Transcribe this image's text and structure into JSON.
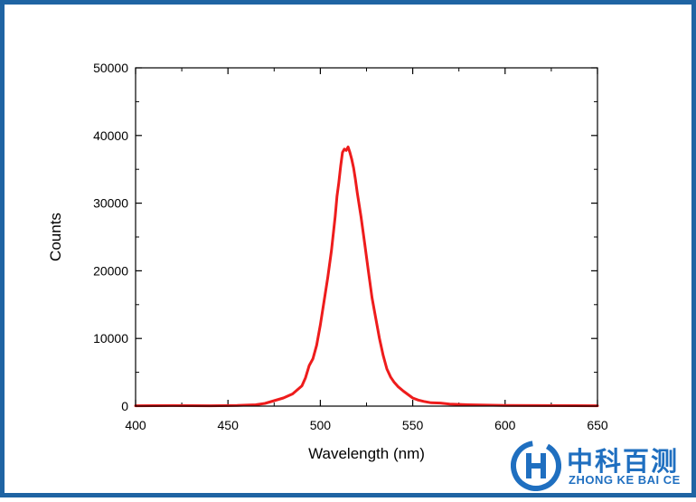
{
  "chart_data": {
    "type": "line",
    "xlabel": "Wavelength (nm)",
    "ylabel": "Counts",
    "xlim": [
      400,
      650
    ],
    "ylim": [
      0,
      50000
    ],
    "x_ticks": [
      400,
      450,
      500,
      550,
      600,
      650
    ],
    "y_ticks": [
      0,
      10000,
      20000,
      30000,
      40000,
      50000
    ],
    "grid": false,
    "line_color": "#ee1c1c",
    "series": [
      {
        "x": [
          400,
          420,
          440,
          455,
          465,
          470,
          475,
          480,
          485,
          490,
          492,
          494,
          496,
          498,
          500,
          502,
          504,
          506,
          508,
          509,
          510,
          511,
          512,
          513,
          514,
          515,
          516,
          517,
          518,
          519,
          520,
          522,
          524,
          526,
          528,
          530,
          532,
          534,
          536,
          538,
          540,
          542,
          545,
          548,
          550,
          553,
          556,
          560,
          565,
          570,
          575,
          580,
          590,
          600,
          620,
          650
        ],
        "y": [
          50,
          80,
          60,
          100,
          200,
          400,
          800,
          1200,
          1800,
          3000,
          4200,
          6000,
          7000,
          9000,
          12000,
          15500,
          19000,
          23000,
          28000,
          31000,
          33000,
          35500,
          37500,
          38000,
          37800,
          38300,
          37500,
          36500,
          35200,
          33500,
          31500,
          28000,
          24000,
          20000,
          16000,
          13000,
          10000,
          7500,
          5500,
          4300,
          3500,
          2900,
          2200,
          1600,
          1200,
          900,
          700,
          500,
          450,
          300,
          250,
          200,
          150,
          100,
          80,
          50
        ]
      }
    ]
  },
  "logo": {
    "text_cn": "中科百测",
    "text_en": "ZHONG KE BAI CE",
    "color": "#1f6fc0"
  },
  "frame_color": "#1f64a3"
}
